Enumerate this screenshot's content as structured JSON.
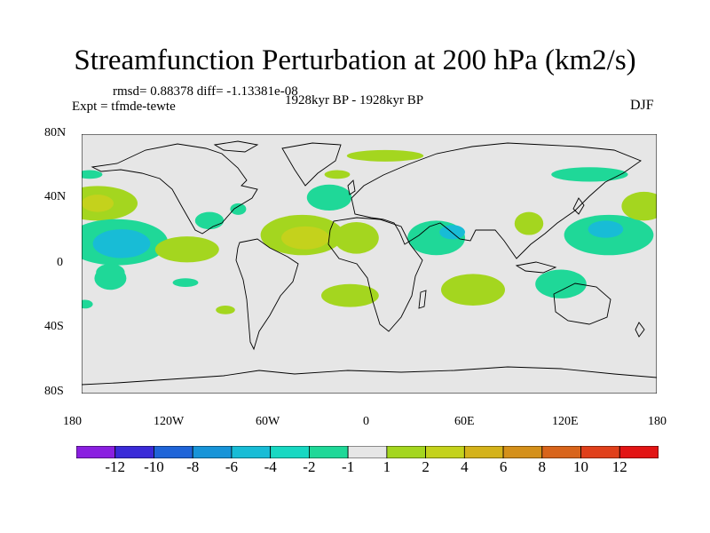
{
  "figure": {
    "title": "Streamfunction Perturbation at 200 hPa (km2/s)",
    "stats": "rmsd= 0.88378 diff= -1.13381e-08",
    "experiment": "Expt = tfmde-tewte",
    "period": "1928kyr BP - 1928kyr BP",
    "season": "DJF"
  },
  "axes": {
    "lat_labels": [
      "80N",
      "40N",
      "0",
      "40S",
      "80S"
    ],
    "lon_labels": [
      "180",
      "120W",
      "60W",
      "0",
      "60E",
      "120E",
      "180"
    ]
  },
  "colorbar": {
    "colors": [
      "#8a1fe0",
      "#3a2ad8",
      "#1f64d8",
      "#1794d8",
      "#18bcd6",
      "#18d8c2",
      "#1fd898",
      "#e6e6e6",
      "#a4d61f",
      "#c4d21c",
      "#d4b21a",
      "#d4901a",
      "#d8641b",
      "#e0401b",
      "#e21414"
    ],
    "labels": [
      "-12",
      "-10",
      "-8",
      "-6",
      "-4",
      "-2",
      "-1",
      "1",
      "2",
      "4",
      "6",
      "8",
      "10",
      "12"
    ]
  },
  "field": {
    "colors": {
      "ocean": "#e6e6e6",
      "pos1": "#a4d61f",
      "pos2": "#c4d21c",
      "neg1": "#1fd898",
      "neg2": "#18bcd6"
    },
    "anomalies": [
      {
        "lon": -170,
        "lat": 42,
        "a": 25,
        "b": 12,
        "level": "pos1"
      },
      {
        "lon": -170,
        "lat": 42,
        "a": 10,
        "b": 6,
        "level": "pos2"
      },
      {
        "lon": -158,
        "lat": 15,
        "a": 32,
        "b": 16,
        "level": "neg1"
      },
      {
        "lon": -155,
        "lat": 14,
        "a": 18,
        "b": 10,
        "level": "neg2"
      },
      {
        "lon": -162,
        "lat": -10,
        "a": 10,
        "b": 8,
        "level": "neg1"
      },
      {
        "lon": -162,
        "lat": -6,
        "a": 9,
        "b": 6,
        "level": "neg1"
      },
      {
        "lon": -178,
        "lat": -28,
        "a": 5,
        "b": 3,
        "level": "neg1"
      },
      {
        "lon": -114,
        "lat": 10,
        "a": 20,
        "b": 9,
        "level": "pos1"
      },
      {
        "lon": -100,
        "lat": 30,
        "a": 9,
        "b": 6,
        "level": "neg1"
      },
      {
        "lon": -115,
        "lat": -13,
        "a": 8,
        "b": 3,
        "level": "neg1"
      },
      {
        "lon": -82,
        "lat": 38,
        "a": 5,
        "b": 4,
        "level": "neg1"
      },
      {
        "lon": -42,
        "lat": 20,
        "a": 26,
        "b": 14,
        "level": "pos1"
      },
      {
        "lon": -40,
        "lat": 18,
        "a": 15,
        "b": 8,
        "level": "pos2"
      },
      {
        "lon": -8,
        "lat": 18,
        "a": 14,
        "b": 11,
        "level": "pos1"
      },
      {
        "lon": -25,
        "lat": 46,
        "a": 14,
        "b": 9,
        "level": "neg1"
      },
      {
        "lon": -20,
        "lat": 62,
        "a": 8,
        "b": 3,
        "level": "pos1"
      },
      {
        "lon": -12,
        "lat": -22,
        "a": 18,
        "b": 8,
        "level": "pos1"
      },
      {
        "lon": -90,
        "lat": -32,
        "a": 6,
        "b": 3,
        "level": "pos1"
      },
      {
        "lon": 10,
        "lat": 75,
        "a": 24,
        "b": 4,
        "level": "pos1"
      },
      {
        "lon": 42,
        "lat": 18,
        "a": 18,
        "b": 12,
        "level": "neg1"
      },
      {
        "lon": 52,
        "lat": 22,
        "a": 8,
        "b": 5,
        "level": "neg2"
      },
      {
        "lon": 65,
        "lat": -18,
        "a": 20,
        "b": 11,
        "level": "pos1"
      },
      {
        "lon": 100,
        "lat": 28,
        "a": 9,
        "b": 8,
        "level": "pos1"
      },
      {
        "lon": 120,
        "lat": -14,
        "a": 16,
        "b": 10,
        "level": "neg1"
      },
      {
        "lon": 150,
        "lat": 20,
        "a": 28,
        "b": 14,
        "level": "neg1"
      },
      {
        "lon": 148,
        "lat": 24,
        "a": 11,
        "b": 6,
        "level": "neg2"
      },
      {
        "lon": 172,
        "lat": 40,
        "a": 14,
        "b": 10,
        "level": "pos1"
      },
      {
        "lon": 138,
        "lat": 62,
        "a": 24,
        "b": 5,
        "level": "neg1"
      },
      {
        "lon": -175,
        "lat": 62,
        "a": 8,
        "b": 3,
        "level": "neg1"
      }
    ]
  }
}
